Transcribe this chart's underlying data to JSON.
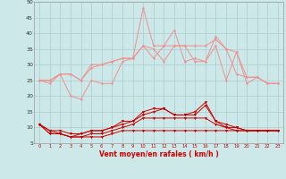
{
  "background_color": "#cce8e8",
  "grid_color": "#aacece",
  "x_labels": [
    "0",
    "1",
    "2",
    "3",
    "4",
    "5",
    "6",
    "7",
    "8",
    "9",
    "10",
    "11",
    "12",
    "13",
    "14",
    "15",
    "16",
    "17",
    "18",
    "19",
    "20",
    "21",
    "22",
    "23"
  ],
  "xlabel": "Vent moyen/en rafales ( km/h )",
  "ylim": [
    5,
    50
  ],
  "yticks": [
    5,
    10,
    15,
    20,
    25,
    30,
    35,
    40,
    45,
    50
  ],
  "light_lines": [
    [
      25,
      24,
      27,
      20,
      19,
      25,
      24,
      24,
      31,
      32,
      48,
      36,
      36,
      41,
      31,
      32,
      31,
      39,
      35,
      27,
      26,
      26,
      24,
      24
    ],
    [
      25,
      25,
      27,
      27,
      25,
      29,
      30,
      31,
      32,
      32,
      36,
      32,
      36,
      36,
      36,
      36,
      36,
      38,
      35,
      34,
      26,
      26,
      24,
      24
    ],
    [
      25,
      25,
      27,
      27,
      25,
      30,
      30,
      31,
      32,
      32,
      36,
      35,
      31,
      36,
      36,
      31,
      31,
      36,
      25,
      34,
      24,
      26,
      24,
      24
    ]
  ],
  "dark_lines": [
    [
      11,
      8,
      8,
      7,
      8,
      9,
      9,
      10,
      12,
      12,
      15,
      16,
      16,
      14,
      14,
      15,
      18,
      12,
      10,
      9,
      9,
      9,
      9,
      9
    ],
    [
      11,
      9,
      9,
      8,
      8,
      9,
      9,
      10,
      11,
      12,
      14,
      15,
      16,
      14,
      14,
      14,
      17,
      12,
      11,
      10,
      9,
      9,
      9,
      9
    ],
    [
      11,
      9,
      8,
      7,
      7,
      8,
      8,
      9,
      10,
      11,
      13,
      13,
      13,
      13,
      13,
      13,
      13,
      11,
      10,
      10,
      9,
      9,
      9,
      9
    ],
    [
      11,
      8,
      8,
      7,
      7,
      7,
      7,
      8,
      9,
      9,
      9,
      9,
      9,
      9,
      9,
      9,
      9,
      9,
      9,
      9,
      9,
      9,
      9,
      9
    ]
  ],
  "light_color": "#f09090",
  "dark_color": "#cc0000"
}
